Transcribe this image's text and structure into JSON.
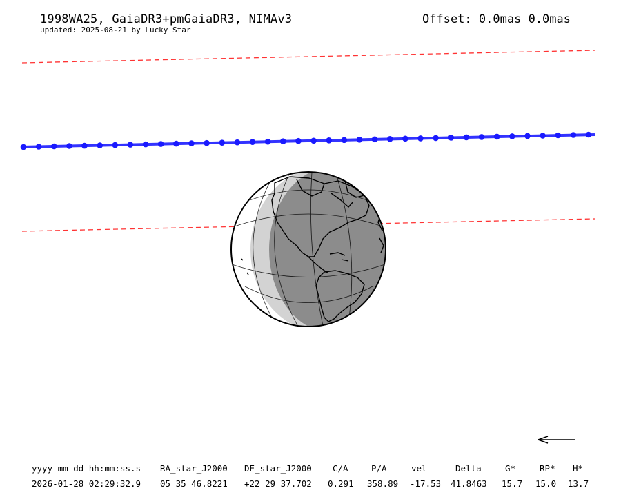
{
  "header": {
    "title": "1998WA25, GaiaDR3+pmGaiaDR3, NIMAv3",
    "updated": "updated: 2025-08-21 by Lucky Star",
    "offset_label": "Offset:",
    "offset_ra": "0.0mas",
    "offset_de": "0.0mas"
  },
  "colors": {
    "path": "#3333ff",
    "path_dot": "#1a1aff",
    "limit": "#ff3333",
    "shadow_light": "#d3d3d3",
    "shadow_dark": "#8c8c8c"
  },
  "map_features": {
    "central_path": "blue line with time markers",
    "shadow_limits": "red dashed lines",
    "globe": "Earth orthographic view centred on the Americas",
    "direction_arrow": "arrow-left"
  },
  "table": {
    "headers": [
      "yyyy mm dd hh:mm:ss.s",
      "RA_star_J2000",
      "DE_star_J2000",
      "C/A",
      "P/A",
      "vel",
      "Delta",
      "G*",
      "RP*",
      "H*"
    ],
    "row": [
      "2026-01-28 02:29:32.9",
      "05 35 46.8221",
      "+22 29 37.702",
      "0.291",
      "358.89",
      "-17.53",
      "41.8463",
      "15.7",
      "15.0",
      "13.7"
    ]
  }
}
